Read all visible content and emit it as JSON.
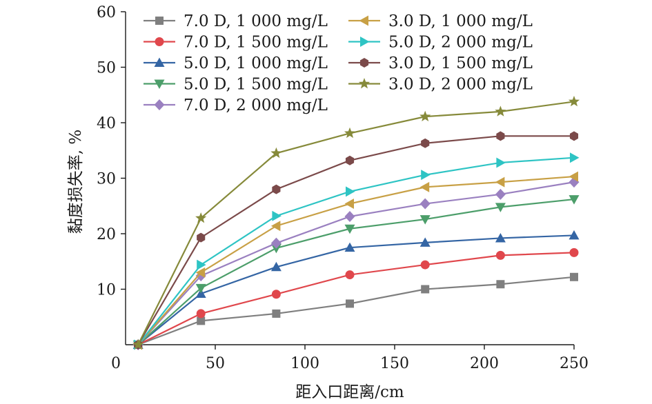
{
  "chart_data": {
    "type": "line",
    "title": "",
    "xlabel": "距入口距离/cm",
    "ylabel": "黏度损失率, %",
    "xlim": [
      0,
      250
    ],
    "ylim": [
      0,
      60
    ],
    "xticks": [
      0,
      50,
      100,
      150,
      200,
      250
    ],
    "yticks": [
      10,
      20,
      30,
      40,
      50,
      60
    ],
    "xtick_labels": [
      "0",
      "50",
      "100",
      "150",
      "200",
      "250"
    ],
    "ytick_labels": [
      "10",
      "20",
      "30",
      "40",
      "50",
      "60"
    ],
    "grid": false,
    "legend_position": "top-left",
    "x": [
      7,
      42,
      84,
      125,
      167,
      209,
      250
    ],
    "series": [
      {
        "name": "7.0 D, 1 000 mg/L",
        "color": "#7f7f7f",
        "marker": "square",
        "values": [
          0,
          4.3,
          5.6,
          7.4,
          10.0,
          10.9,
          12.2
        ]
      },
      {
        "name": "7.0 D, 1 500 mg/L",
        "color": "#e0474c",
        "marker": "circle",
        "values": [
          0,
          5.6,
          9.1,
          12.6,
          14.4,
          16.1,
          16.6
        ]
      },
      {
        "name": "5.0 D, 1 000 mg/L",
        "color": "#3465a4",
        "marker": "triangle-up",
        "values": [
          0,
          9.2,
          14.0,
          17.5,
          18.4,
          19.2,
          19.7
        ]
      },
      {
        "name": "5.0 D, 1 500 mg/L",
        "color": "#4c9e6a",
        "marker": "triangle-down",
        "values": [
          0,
          10.2,
          17.4,
          20.9,
          22.6,
          24.8,
          26.2
        ]
      },
      {
        "name": "7.0 D, 2 000 mg/L",
        "color": "#9a80c0",
        "marker": "diamond",
        "values": [
          0,
          12.4,
          18.3,
          23.1,
          25.4,
          27.1,
          29.3
        ]
      },
      {
        "name": "3.0 D, 1 000 mg/L",
        "color": "#c8a045",
        "marker": "triangle-left",
        "values": [
          0,
          13.0,
          21.4,
          25.4,
          28.4,
          29.3,
          30.3
        ]
      },
      {
        "name": "5.0 D, 2 000 mg/L",
        "color": "#2ec4c4",
        "marker": "triangle-right",
        "values": [
          0,
          14.4,
          23.2,
          27.6,
          30.6,
          32.8,
          33.7
        ]
      },
      {
        "name": "3.0 D, 1 500 mg/L",
        "color": "#7b4a4a",
        "marker": "hexagon",
        "values": [
          0,
          19.3,
          28.0,
          33.2,
          36.3,
          37.6,
          37.6
        ]
      },
      {
        "name": "3.0 D, 2 000 mg/L",
        "color": "#868a3a",
        "marker": "star",
        "values": [
          0,
          22.8,
          34.5,
          38.1,
          41.1,
          42.0,
          43.8
        ]
      }
    ]
  }
}
